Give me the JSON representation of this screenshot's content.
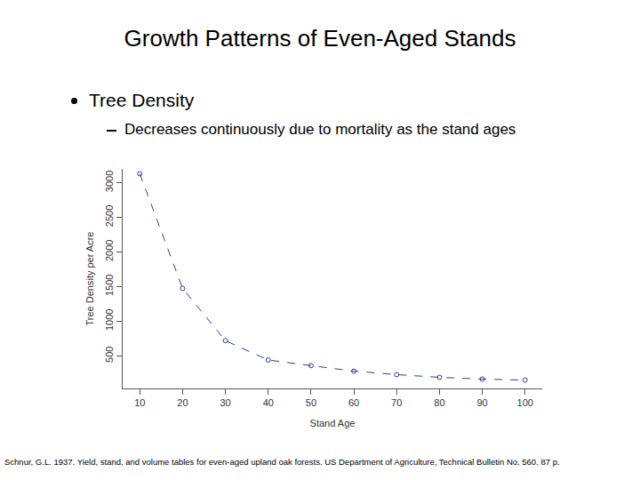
{
  "slide": {
    "title": "Growth Patterns of Even-Aged Stands",
    "bullet": "Tree Density",
    "sub_bullet": "Decreases continuously due to mortality as the stand ages",
    "source": "Schnur, G.L. 1937. Yield, stand, and volume tables for even-aged upland oak forests. US Department of Agriculture, Technical Bulletin No. 560. 87 p."
  },
  "chart_data": {
    "type": "line",
    "x_label": "Stand Age",
    "y_label": "Tree Density per Acre",
    "x": [
      10,
      20,
      30,
      40,
      50,
      60,
      70,
      80,
      90,
      100
    ],
    "values": [
      3130,
      1475,
      720,
      440,
      360,
      280,
      230,
      190,
      165,
      150
    ],
    "color": "#2b3f8f",
    "marker": "circle-open",
    "line_style": "dash",
    "xlim": [
      6,
      104
    ],
    "xticks": [
      10,
      20,
      30,
      40,
      50,
      60,
      70,
      80,
      90,
      100
    ],
    "ylim": [
      30,
      3200
    ],
    "yticks": [
      500,
      1000,
      1500,
      2000,
      2500,
      3000
    ],
    "grid": false
  }
}
